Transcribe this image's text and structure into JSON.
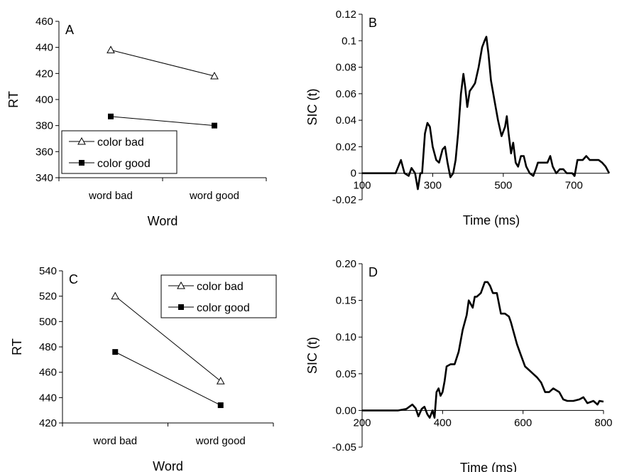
{
  "chart_data": [
    {
      "panel": "A",
      "type": "line",
      "xlabel": "Word",
      "ylabel": "RT",
      "categories": [
        "word bad",
        "word good"
      ],
      "ylim": [
        340,
        460
      ],
      "yticks": [
        340,
        360,
        380,
        400,
        420,
        440,
        460
      ],
      "legend_position": "bottom-left",
      "grid": false,
      "series": [
        {
          "name": "color bad",
          "marker": "open-triangle",
          "values": [
            438,
            418
          ]
        },
        {
          "name": "color good",
          "marker": "filled-square",
          "values": [
            387,
            380
          ]
        }
      ]
    },
    {
      "panel": "B",
      "type": "line",
      "xlabel": "Time (ms)",
      "ylabel": "SIC (t)",
      "xlim": [
        100,
        800
      ],
      "ylim": [
        -0.02,
        0.12
      ],
      "xticks": [
        100,
        300,
        500,
        700
      ],
      "yticks": [
        "-0.02",
        "0",
        "0.02",
        "0.04",
        "0.06",
        "0.08",
        "0.1",
        "0.12"
      ],
      "grid": false,
      "points": [
        [
          100,
          0
        ],
        [
          195,
          0
        ],
        [
          210,
          0.01
        ],
        [
          220,
          0
        ],
        [
          232,
          -0.002
        ],
        [
          240,
          0.004
        ],
        [
          250,
          0
        ],
        [
          258,
          -0.012
        ],
        [
          265,
          0
        ],
        [
          270,
          0
        ],
        [
          278,
          0.03
        ],
        [
          285,
          0.038
        ],
        [
          292,
          0.035
        ],
        [
          300,
          0.02
        ],
        [
          310,
          0.01
        ],
        [
          318,
          0.008
        ],
        [
          328,
          0.018
        ],
        [
          335,
          0.02
        ],
        [
          342,
          0.008
        ],
        [
          350,
          -0.003
        ],
        [
          358,
          0
        ],
        [
          365,
          0.01
        ],
        [
          372,
          0.03
        ],
        [
          380,
          0.06
        ],
        [
          387,
          0.075
        ],
        [
          392,
          0.065
        ],
        [
          398,
          0.05
        ],
        [
          405,
          0.062
        ],
        [
          413,
          0.065
        ],
        [
          420,
          0.068
        ],
        [
          430,
          0.08
        ],
        [
          440,
          0.095
        ],
        [
          447,
          0.1
        ],
        [
          452,
          0.103
        ],
        [
          458,
          0.09
        ],
        [
          465,
          0.07
        ],
        [
          475,
          0.055
        ],
        [
          485,
          0.04
        ],
        [
          495,
          0.028
        ],
        [
          505,
          0.035
        ],
        [
          510,
          0.043
        ],
        [
          515,
          0.03
        ],
        [
          522,
          0.015
        ],
        [
          528,
          0.023
        ],
        [
          535,
          0.008
        ],
        [
          542,
          0.005
        ],
        [
          550,
          0.013
        ],
        [
          558,
          0.013
        ],
        [
          565,
          0.005
        ],
        [
          575,
          0
        ],
        [
          585,
          -0.002
        ],
        [
          592,
          0.003
        ],
        [
          598,
          0.008
        ],
        [
          610,
          0.008
        ],
        [
          625,
          0.008
        ],
        [
          633,
          0.013
        ],
        [
          640,
          0.005
        ],
        [
          650,
          0
        ],
        [
          660,
          0.003
        ],
        [
          670,
          0.003
        ],
        [
          680,
          0
        ],
        [
          695,
          0
        ],
        [
          702,
          -0.002
        ],
        [
          710,
          0.01
        ],
        [
          725,
          0.01
        ],
        [
          735,
          0.013
        ],
        [
          745,
          0.01
        ],
        [
          755,
          0.01
        ],
        [
          770,
          0.01
        ],
        [
          780,
          0.008
        ],
        [
          790,
          0.005
        ],
        [
          800,
          0
        ]
      ]
    },
    {
      "panel": "C",
      "type": "line",
      "xlabel": "Word",
      "ylabel": "RT",
      "categories": [
        "word bad",
        "word good"
      ],
      "ylim": [
        420,
        540
      ],
      "yticks": [
        420,
        440,
        460,
        480,
        500,
        520,
        540
      ],
      "legend_position": "top-right",
      "grid": false,
      "series": [
        {
          "name": "color bad",
          "marker": "open-triangle",
          "values": [
            520,
            453
          ]
        },
        {
          "name": "color good",
          "marker": "filled-square",
          "values": [
            476,
            434
          ]
        }
      ]
    },
    {
      "panel": "D",
      "type": "line",
      "xlabel": "Time (ms)",
      "ylabel": "SIC (t)",
      "xlim": [
        200,
        800
      ],
      "ylim": [
        -0.05,
        0.2
      ],
      "xticks": [
        200,
        400,
        600,
        800
      ],
      "yticks": [
        "-0.05",
        "0.00",
        "0.05",
        "0.10",
        "0.15",
        "0.20"
      ],
      "grid": false,
      "points": [
        [
          200,
          0
        ],
        [
          290,
          0
        ],
        [
          310,
          0.002
        ],
        [
          325,
          0.008
        ],
        [
          333,
          0.003
        ],
        [
          340,
          -0.008
        ],
        [
          348,
          0.002
        ],
        [
          355,
          0.005
        ],
        [
          362,
          -0.005
        ],
        [
          368,
          -0.01
        ],
        [
          375,
          0
        ],
        [
          380,
          -0.01
        ],
        [
          385,
          0.025
        ],
        [
          390,
          0.03
        ],
        [
          395,
          0.02
        ],
        [
          400,
          0.025
        ],
        [
          405,
          0.04
        ],
        [
          410,
          0.06
        ],
        [
          420,
          0.063
        ],
        [
          430,
          0.063
        ],
        [
          440,
          0.08
        ],
        [
          450,
          0.11
        ],
        [
          460,
          0.13
        ],
        [
          465,
          0.15
        ],
        [
          470,
          0.145
        ],
        [
          475,
          0.14
        ],
        [
          480,
          0.155
        ],
        [
          485,
          0.155
        ],
        [
          495,
          0.16
        ],
        [
          505,
          0.175
        ],
        [
          512,
          0.175
        ],
        [
          518,
          0.17
        ],
        [
          525,
          0.16
        ],
        [
          535,
          0.16
        ],
        [
          545,
          0.132
        ],
        [
          555,
          0.132
        ],
        [
          565,
          0.128
        ],
        [
          570,
          0.12
        ],
        [
          575,
          0.11
        ],
        [
          585,
          0.09
        ],
        [
          595,
          0.075
        ],
        [
          605,
          0.06
        ],
        [
          615,
          0.055
        ],
        [
          625,
          0.05
        ],
        [
          635,
          0.045
        ],
        [
          645,
          0.038
        ],
        [
          655,
          0.025
        ],
        [
          665,
          0.025
        ],
        [
          675,
          0.03
        ],
        [
          690,
          0.025
        ],
        [
          700,
          0.015
        ],
        [
          710,
          0.013
        ],
        [
          725,
          0.013
        ],
        [
          740,
          0.015
        ],
        [
          750,
          0.018
        ],
        [
          760,
          0.01
        ],
        [
          775,
          0.013
        ],
        [
          785,
          0.008
        ],
        [
          790,
          0.013
        ],
        [
          800,
          0.012
        ]
      ]
    }
  ]
}
